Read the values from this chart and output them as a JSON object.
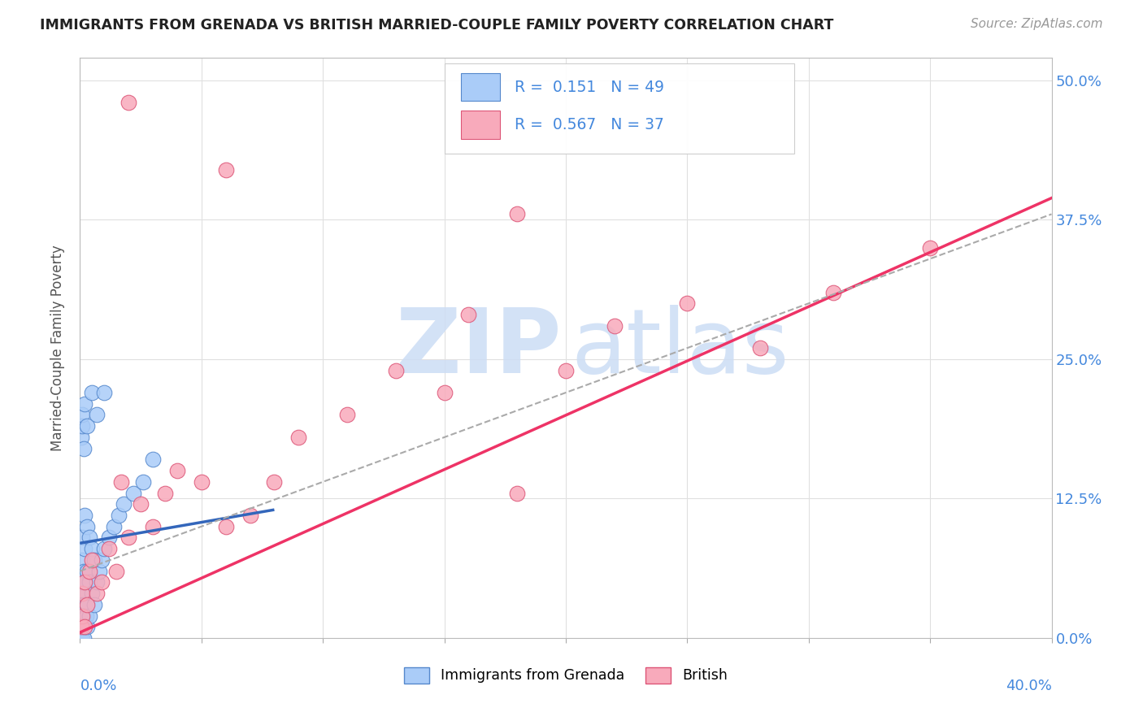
{
  "title": "IMMIGRANTS FROM GRENADA VS BRITISH MARRIED-COUPLE FAMILY POVERTY CORRELATION CHART",
  "source": "Source: ZipAtlas.com",
  "ylabel": "Married-Couple Family Poverty",
  "yticks": [
    "0.0%",
    "12.5%",
    "25.0%",
    "37.5%",
    "50.0%"
  ],
  "ytick_vals": [
    0.0,
    0.125,
    0.25,
    0.375,
    0.5
  ],
  "xlim": [
    0.0,
    0.4
  ],
  "ylim": [
    0.0,
    0.52
  ],
  "grenada_color": "#aaccf8",
  "british_color": "#f8aabb",
  "grenada_edge": "#5588cc",
  "british_edge": "#dd5577",
  "line_grenada": "#3366bb",
  "line_british": "#ee3366",
  "line_dashed": "#aaaaaa",
  "background": "#ffffff",
  "grid_color": "#e0e0e0",
  "grenada_line_x0": 0.0,
  "grenada_line_y0": 0.085,
  "grenada_line_x1": 0.08,
  "grenada_line_y1": 0.115,
  "british_line_x0": 0.0,
  "british_line_y0": 0.005,
  "british_line_x1": 0.38,
  "british_line_y1": 0.375,
  "dashed_line_x0": 0.0,
  "dashed_line_y0": 0.06,
  "dashed_line_x1": 0.4,
  "dashed_line_y1": 0.38,
  "grenada_pts_x": [
    0.0005,
    0.0005,
    0.0008,
    0.001,
    0.001,
    0.001,
    0.001,
    0.001,
    0.001,
    0.0015,
    0.0015,
    0.0015,
    0.002,
    0.002,
    0.002,
    0.002,
    0.002,
    0.0025,
    0.003,
    0.003,
    0.003,
    0.003,
    0.004,
    0.004,
    0.004,
    0.005,
    0.005,
    0.006,
    0.006,
    0.007,
    0.008,
    0.009,
    0.01,
    0.012,
    0.014,
    0.016,
    0.018,
    0.022,
    0.026,
    0.03,
    0.0005,
    0.0008,
    0.001,
    0.0015,
    0.002,
    0.003,
    0.005,
    0.007,
    0.01
  ],
  "grenada_pts_y": [
    0.01,
    0.04,
    0.02,
    0.0,
    0.01,
    0.03,
    0.05,
    0.07,
    0.09,
    0.0,
    0.02,
    0.06,
    0.01,
    0.03,
    0.05,
    0.08,
    0.11,
    0.02,
    0.01,
    0.03,
    0.06,
    0.1,
    0.02,
    0.05,
    0.09,
    0.04,
    0.08,
    0.03,
    0.07,
    0.05,
    0.06,
    0.07,
    0.08,
    0.09,
    0.1,
    0.11,
    0.12,
    0.13,
    0.14,
    0.16,
    0.18,
    0.19,
    0.2,
    0.17,
    0.21,
    0.19,
    0.22,
    0.2,
    0.22
  ],
  "british_pts_x": [
    0.0005,
    0.001,
    0.001,
    0.002,
    0.002,
    0.003,
    0.004,
    0.005,
    0.007,
    0.009,
    0.012,
    0.015,
    0.017,
    0.02,
    0.025,
    0.03,
    0.035,
    0.04,
    0.05,
    0.06,
    0.07,
    0.08,
    0.09,
    0.11,
    0.13,
    0.15,
    0.16,
    0.18,
    0.2,
    0.22,
    0.25,
    0.28,
    0.31,
    0.35,
    0.06,
    0.18,
    0.02
  ],
  "british_pts_y": [
    0.01,
    0.02,
    0.04,
    0.01,
    0.05,
    0.03,
    0.06,
    0.07,
    0.04,
    0.05,
    0.08,
    0.06,
    0.14,
    0.09,
    0.12,
    0.1,
    0.13,
    0.15,
    0.14,
    0.1,
    0.11,
    0.14,
    0.18,
    0.2,
    0.24,
    0.22,
    0.29,
    0.13,
    0.24,
    0.28,
    0.3,
    0.26,
    0.31,
    0.35,
    0.42,
    0.38,
    0.48
  ]
}
